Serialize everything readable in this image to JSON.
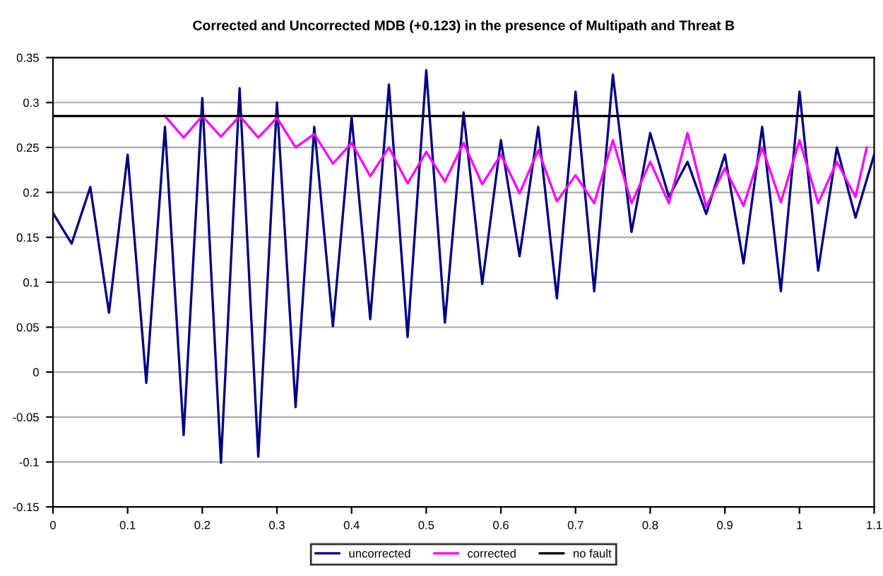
{
  "chart_data": {
    "type": "line",
    "title": "Corrected and Uncorrected MDB (+0.123) in the presence of Multipath and Threat B",
    "series": [
      {
        "name": "uncorrected",
        "color": "#000080",
        "x": [
          0,
          0.025,
          0.05,
          0.075,
          0.1,
          0.125,
          0.15,
          0.175,
          0.2,
          0.225,
          0.25,
          0.275,
          0.3,
          0.325,
          0.35,
          0.375,
          0.4,
          0.425,
          0.45,
          0.475,
          0.5,
          0.525,
          0.55,
          0.575,
          0.6,
          0.625,
          0.65,
          0.675,
          0.7,
          0.725,
          0.75,
          0.775,
          0.8,
          0.825,
          0.85,
          0.875,
          0.9,
          0.925,
          0.95,
          0.975,
          1.0,
          1.025,
          1.05,
          1.075,
          1.1
        ],
        "values": [
          0.177,
          0.143,
          0.206,
          0.066,
          0.242,
          -0.012,
          0.273,
          -0.07,
          0.305,
          -0.101,
          0.316,
          -0.094,
          0.3,
          -0.039,
          0.273,
          0.051,
          0.284,
          0.059,
          0.32,
          0.039,
          0.336,
          0.055,
          0.289,
          0.098,
          0.258,
          0.129,
          0.273,
          0.082,
          0.312,
          0.09,
          0.331,
          0.156,
          0.266,
          0.195,
          0.234,
          0.176,
          0.242,
          0.121,
          0.273,
          0.09,
          0.312,
          0.113,
          0.25,
          0.172,
          0.242
        ]
      },
      {
        "name": "corrected",
        "color": "#ff00ff",
        "x": [
          0.15,
          0.175,
          0.2,
          0.225,
          0.25,
          0.275,
          0.3,
          0.325,
          0.35,
          0.375,
          0.4,
          0.425,
          0.45,
          0.475,
          0.5,
          0.525,
          0.55,
          0.575,
          0.6,
          0.625,
          0.65,
          0.675,
          0.7,
          0.725,
          0.75,
          0.775,
          0.8,
          0.825,
          0.85,
          0.875,
          0.9,
          0.925,
          0.95,
          0.975,
          1.0,
          1.025,
          1.05,
          1.075,
          1.09
        ],
        "values": [
          0.285,
          0.261,
          0.285,
          0.262,
          0.285,
          0.261,
          0.283,
          0.25,
          0.265,
          0.232,
          0.255,
          0.218,
          0.25,
          0.21,
          0.245,
          0.212,
          0.255,
          0.209,
          0.242,
          0.199,
          0.247,
          0.19,
          0.219,
          0.188,
          0.258,
          0.188,
          0.234,
          0.188,
          0.266,
          0.184,
          0.227,
          0.185,
          0.25,
          0.189,
          0.258,
          0.188,
          0.234,
          0.195,
          0.25
        ]
      },
      {
        "name": "no fault",
        "color": "#000000",
        "x": [
          0,
          1.1
        ],
        "values": [
          0.285,
          0.285
        ]
      }
    ],
    "xlim": [
      0,
      1.1
    ],
    "xticks": [
      0,
      0.1,
      0.2,
      0.3,
      0.4,
      0.5,
      0.6,
      0.7,
      0.8,
      0.9,
      1,
      1.1
    ],
    "ylim": [
      -0.15,
      0.35
    ],
    "yticks": [
      -0.15,
      -0.1,
      -0.05,
      0,
      0.05,
      0.1,
      0.15,
      0.2,
      0.25,
      0.3,
      0.35
    ],
    "grid": "y",
    "legend": "bottom",
    "marker": "none",
    "line_style": "solid"
  }
}
